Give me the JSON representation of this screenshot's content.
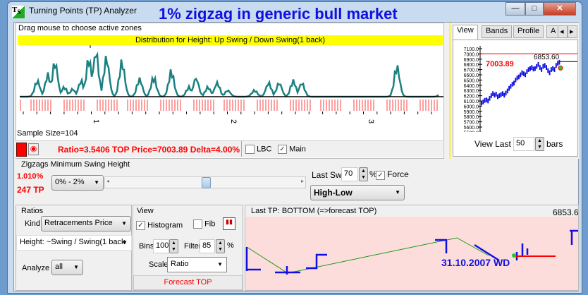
{
  "window": {
    "title": "Turning Points (TP) Analyzer",
    "overlay_title": "1% zigzag in generic bull market",
    "minimize": "—",
    "maximize": "□",
    "close": "✕"
  },
  "histogram": {
    "hint": "Drag mouse to choose active zones",
    "header": "Distribution for Height: Up Swing / Down Swing(1 back)",
    "axis_labels": [
      "1",
      "2",
      "3"
    ],
    "sample_size": "Sample Size=104",
    "stats": "Ratio=3.5406  TOP Price=7003.89  Delta=4.00%",
    "lbc_label": "LBC",
    "lbc_checked": false,
    "main_label": "Main",
    "main_checked": true,
    "colors": {
      "line": "#1a8080",
      "ticks": "#ff4040"
    }
  },
  "side": {
    "tabs": [
      "View",
      "Bands",
      "Profile",
      "A"
    ],
    "active_tab": "View",
    "y_ticks": [
      "7100.0",
      "7000.0",
      "6900.0",
      "6800.0",
      "6700.0",
      "6600.0",
      "6500.0",
      "6400.0",
      "6300.0",
      "6200.0",
      "6100.0",
      "6000.0",
      "5900.0",
      "5800.0",
      "5700.0",
      "5600.0",
      "5500.0"
    ],
    "top_price": "7003.89",
    "last_price": "6853.60",
    "view_last_label": "View Last",
    "view_last_value": "50",
    "bars_label": "bars"
  },
  "zigzag": {
    "title": "Zigzags Minimum Swing Height",
    "pct": "1.010%",
    "tp_count": "247 TP",
    "range": "0% - 2%",
    "slider_value": 0.5,
    "last_sw_label": "Last Sw.",
    "last_sw_value": "70",
    "pct_sign": "%",
    "force_label": "Force",
    "force_checked": true,
    "mode": "High-Low"
  },
  "ratios": {
    "title": "Ratios",
    "kind_label": "Kind",
    "kind_value": "Retracements Price",
    "height_value": "Height: ~Swing / Swing(1 back",
    "analyze_label": "Analyze",
    "analyze_value": "all"
  },
  "view": {
    "title": "View",
    "histogram_label": "Histogram",
    "histogram_checked": true,
    "fib_label": "Fib",
    "fib_checked": false,
    "bins_label": "Bins",
    "bins_value": "100",
    "filter_label": "Filter",
    "filter_value": "85",
    "pct_sign": "%",
    "scale_label": "Scale",
    "scale_value": "Ratio",
    "forecast_button": "Forecast TOP"
  },
  "forecast": {
    "title": "Last TP: BOTTOM (=>forecast TOP)",
    "date_label": "31.10.2007 WD",
    "price_label": "6853.60"
  }
}
